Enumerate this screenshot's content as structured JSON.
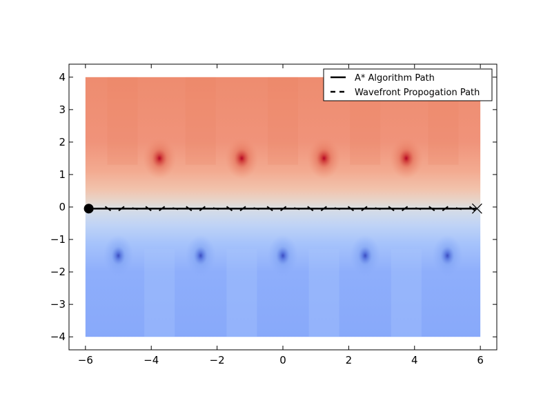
{
  "chart_data": {
    "type": "heatmap",
    "title": "",
    "xlabel": "",
    "ylabel": "",
    "xlim": [
      -6.5,
      6.5
    ],
    "ylim": [
      -4.4,
      4.4
    ],
    "field_extent": {
      "x": [
        -6,
        6
      ],
      "y": [
        -4,
        4
      ]
    },
    "colormap": {
      "positive": "#b40426",
      "neutral": "#dddddd",
      "negative": "#3b4cc0"
    },
    "x_ticks": [
      -6,
      -4,
      -2,
      0,
      2,
      4,
      6
    ],
    "x_tick_labels": [
      "−6",
      "−4",
      "−2",
      "0",
      "2",
      "4",
      "6"
    ],
    "y_ticks": [
      -4,
      -3,
      -2,
      -1,
      0,
      1,
      2,
      3,
      4
    ],
    "y_tick_labels": [
      "−4",
      "−3",
      "−2",
      "−1",
      "0",
      "1",
      "2",
      "3",
      "4"
    ],
    "positive_sources": [
      {
        "x": -3.75,
        "y": 1.5
      },
      {
        "x": -1.25,
        "y": 1.5
      },
      {
        "x": 1.25,
        "y": 1.5
      },
      {
        "x": 3.75,
        "y": 1.5
      }
    ],
    "negative_sources": [
      {
        "x": -5.0,
        "y": -1.5
      },
      {
        "x": -2.5,
        "y": -1.5
      },
      {
        "x": 0.0,
        "y": -1.5
      },
      {
        "x": 2.5,
        "y": -1.5
      },
      {
        "x": 5.0,
        "y": -1.5
      }
    ],
    "start": {
      "x": -5.9,
      "y": -0.05
    },
    "goal": {
      "x": 5.9,
      "y": -0.05
    },
    "series": [
      {
        "name": "A* Algorithm Path",
        "style": "solid",
        "color": "#000000",
        "x": [
          -5.9,
          5.9
        ],
        "y": [
          -0.05,
          -0.05
        ]
      },
      {
        "name": "Wavefront Propogation Path",
        "style": "dashed",
        "color": "#000000",
        "x": [
          -5.9,
          5.9
        ],
        "y": [
          -0.05,
          -0.05
        ]
      }
    ],
    "legend": {
      "position": "top-right",
      "entries": [
        "A* Algorithm Path",
        "Wavefront Propogation Path"
      ]
    },
    "grid": false
  }
}
